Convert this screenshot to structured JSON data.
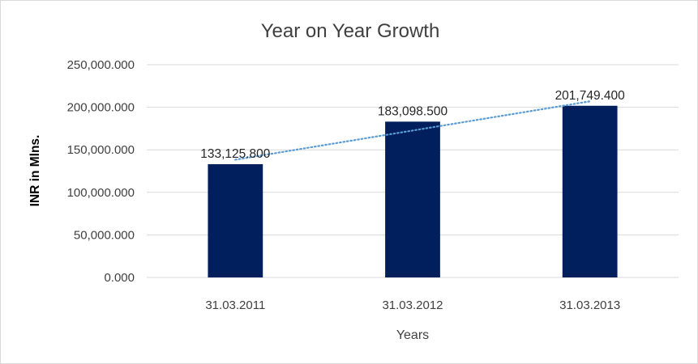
{
  "colors": {
    "bar": "#001f5c",
    "trendline": "#5b9bd5",
    "gridline": "#d9d9d9"
  },
  "chart_data": {
    "type": "bar",
    "title": "Year on Year Growth",
    "xlabel": "Years",
    "ylabel": "INR in Mlns.",
    "categories": [
      "31.03.2011",
      "31.03.2012",
      "31.03.2013"
    ],
    "values": [
      133125.8,
      183098.5,
      201749.4
    ],
    "data_labels": [
      "133,125.800",
      "183,098.500",
      "201,749.400"
    ],
    "ylim": [
      0,
      250000
    ],
    "yticks": [
      0,
      50000,
      100000,
      150000,
      200000,
      250000
    ],
    "ytick_labels": [
      "0.000",
      "50,000.000",
      "100,000.000",
      "150,000.000",
      "200,000.000",
      "250,000.000"
    ],
    "grid": true,
    "legend": "none",
    "trendline": {
      "type": "linear",
      "style": "dotted"
    }
  }
}
